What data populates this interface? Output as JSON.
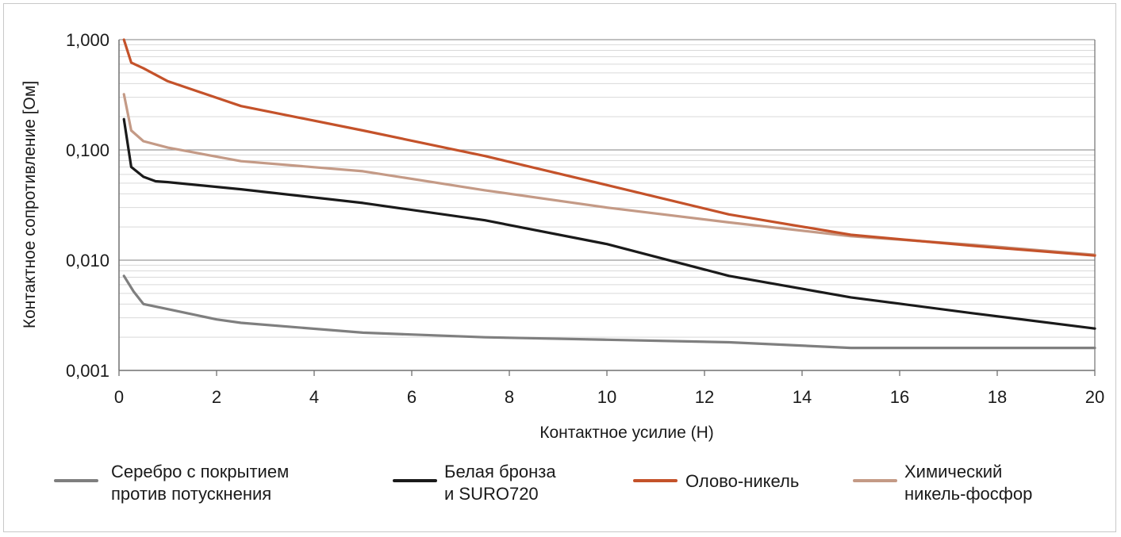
{
  "chart_data": {
    "type": "line",
    "title": "",
    "xlabel": "Контактное усилие (Н)",
    "ylabel": "Контактное сопротивление [Ом]",
    "xlim": [
      0,
      20
    ],
    "ylim": [
      0.001,
      1.0
    ],
    "yscale": "log",
    "grid": true,
    "legend_position": "bottom",
    "x_ticks": [
      0,
      2,
      4,
      6,
      8,
      10,
      12,
      14,
      16,
      18,
      20
    ],
    "x_tick_labels": [
      "0",
      "2",
      "4",
      "6",
      "8",
      "10",
      "12",
      "14",
      "16",
      "18",
      "20"
    ],
    "y_ticks": [
      0.001,
      0.01,
      0.1,
      1.0
    ],
    "y_tick_labels": [
      "0,001",
      "0,010",
      "0,100",
      "1,000"
    ],
    "series": [
      {
        "name": "Серебро с покрытием против потускнения",
        "legend_lines": [
          "Серебро с покрытием",
          "против потускнения"
        ],
        "color": "#7f7f7f",
        "points": [
          [
            0.1,
            0.0072
          ],
          [
            0.3,
            0.0052
          ],
          [
            0.5,
            0.004
          ],
          [
            1,
            0.0036
          ],
          [
            2,
            0.0029
          ],
          [
            2.5,
            0.0027
          ],
          [
            5,
            0.0022
          ],
          [
            7.5,
            0.002
          ],
          [
            10,
            0.0019
          ],
          [
            12.5,
            0.0018
          ],
          [
            15,
            0.0016
          ],
          [
            17.5,
            0.0016
          ],
          [
            20,
            0.0016
          ]
        ]
      },
      {
        "name": "Белая бронза и SURO720",
        "legend_lines": [
          "Белая бронза",
          "и SURO720"
        ],
        "color": "#1a1a1a",
        "points": [
          [
            0.1,
            0.19
          ],
          [
            0.25,
            0.07
          ],
          [
            0.5,
            0.057
          ],
          [
            0.75,
            0.052
          ],
          [
            1,
            0.051
          ],
          [
            2.5,
            0.044
          ],
          [
            5,
            0.033
          ],
          [
            7.5,
            0.023
          ],
          [
            10,
            0.014
          ],
          [
            12.5,
            0.0072
          ],
          [
            15,
            0.0046
          ],
          [
            17.5,
            0.0033
          ],
          [
            20,
            0.0024
          ]
        ]
      },
      {
        "name": "Олово-никель",
        "legend_lines": [
          "Олово-никель"
        ],
        "color": "#c4522a",
        "points": [
          [
            0.1,
            1.0
          ],
          [
            0.25,
            0.62
          ],
          [
            0.5,
            0.55
          ],
          [
            1,
            0.42
          ],
          [
            2.5,
            0.25
          ],
          [
            5,
            0.15
          ],
          [
            7.5,
            0.088
          ],
          [
            10,
            0.048
          ],
          [
            12.5,
            0.026
          ],
          [
            15,
            0.017
          ],
          [
            17.5,
            0.0135
          ],
          [
            20,
            0.011
          ]
        ]
      },
      {
        "name": "Химический никель-фосфор",
        "legend_lines": [
          "Химический",
          "никель-фосфор"
        ],
        "color": "#c49a86",
        "points": [
          [
            0.1,
            0.32
          ],
          [
            0.25,
            0.15
          ],
          [
            0.5,
            0.12
          ],
          [
            1,
            0.105
          ],
          [
            2.5,
            0.079
          ],
          [
            5,
            0.064
          ],
          [
            7.5,
            0.043
          ],
          [
            10,
            0.03
          ],
          [
            12.5,
            0.022
          ],
          [
            15,
            0.0165
          ],
          [
            17.5,
            0.0138
          ],
          [
            20,
            0.0112
          ]
        ]
      }
    ]
  }
}
